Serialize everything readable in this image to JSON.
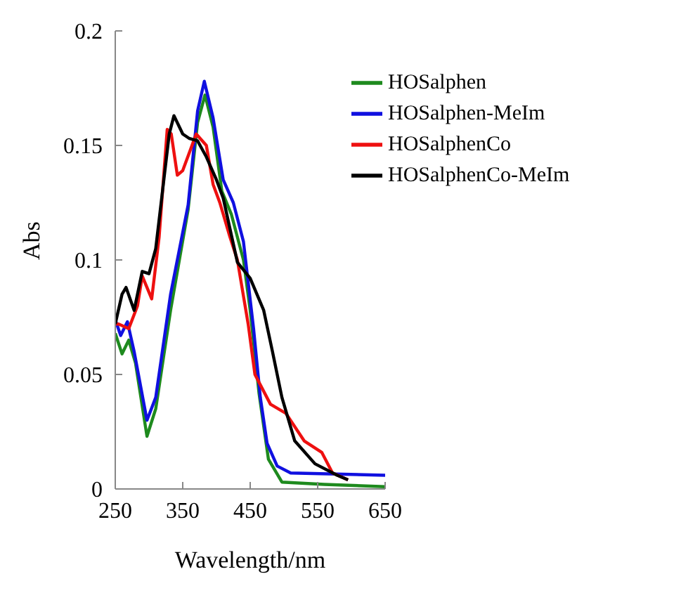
{
  "chart_data": {
    "type": "line",
    "xlabel": "Wavelength/nm",
    "ylabel": "Abs",
    "xlim": [
      250,
      650
    ],
    "xticks": [
      250,
      350,
      450,
      550,
      650
    ],
    "ylim": [
      0,
      0.2
    ],
    "yticks": [
      0,
      {
        "value": 0.05,
        "label": "0.05"
      },
      {
        "value": 0.1,
        "label": "0.1"
      },
      {
        "value": 0.15,
        "label": "0.15"
      },
      {
        "value": 0.2,
        "label": "0.2"
      }
    ],
    "legend": "top right",
    "grid": false,
    "marker": "none",
    "line_style": "solid",
    "series": [
      {
        "name": "HOSalphen",
        "color": "#1e8a1e",
        "x": [
          250,
          260,
          270,
          280,
          297,
          310,
          332,
          358,
          372,
          383,
          395,
          408,
          422,
          440,
          450,
          463,
          477,
          497,
          560,
          650
        ],
        "values": [
          0.068,
          0.059,
          0.065,
          0.055,
          0.023,
          0.035,
          0.078,
          0.122,
          0.16,
          0.172,
          0.158,
          0.13,
          0.12,
          0.1,
          0.078,
          0.042,
          0.013,
          0.003,
          0.002,
          0.001
        ]
      },
      {
        "name": "HOSalphen-MeIm",
        "color": "#1010e0",
        "x": [
          250,
          258,
          268,
          278,
          297,
          310,
          332,
          358,
          372,
          382,
          395,
          410,
          425,
          440,
          455,
          465,
          475,
          490,
          510,
          650
        ],
        "values": [
          0.074,
          0.067,
          0.073,
          0.06,
          0.03,
          0.04,
          0.085,
          0.124,
          0.165,
          0.178,
          0.162,
          0.135,
          0.125,
          0.108,
          0.07,
          0.04,
          0.02,
          0.01,
          0.007,
          0.006
        ]
      },
      {
        "name": "HOSalphenCo",
        "color": "#ee1010",
        "x": [
          250,
          255,
          270,
          283,
          290,
          304,
          315,
          327,
          333,
          342,
          350,
          360,
          370,
          385,
          395,
          405,
          420,
          431,
          447,
          457,
          480,
          503,
          530,
          556,
          572,
          595
        ],
        "values": [
          0.072,
          0.072,
          0.07,
          0.08,
          0.093,
          0.083,
          0.11,
          0.157,
          0.155,
          0.137,
          0.139,
          0.147,
          0.155,
          0.15,
          0.133,
          0.125,
          0.11,
          0.1,
          0.072,
          0.05,
          0.037,
          0.033,
          0.021,
          0.016,
          0.007,
          0.004
        ]
      },
      {
        "name": "HOSalphenCo-MeIm",
        "color": "#000000",
        "x": [
          250,
          260,
          266,
          278,
          290,
          300,
          310,
          320,
          330,
          337,
          350,
          360,
          372,
          385,
          400,
          410,
          431,
          450,
          470,
          483,
          497,
          516,
          546,
          579,
          595
        ],
        "values": [
          0.072,
          0.085,
          0.088,
          0.078,
          0.095,
          0.094,
          0.105,
          0.13,
          0.155,
          0.163,
          0.155,
          0.153,
          0.152,
          0.145,
          0.135,
          0.127,
          0.099,
          0.092,
          0.078,
          0.06,
          0.04,
          0.021,
          0.011,
          0.006,
          0.004
        ]
      }
    ]
  }
}
